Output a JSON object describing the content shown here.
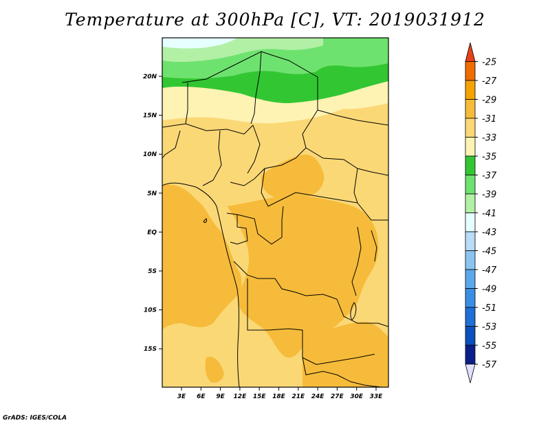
{
  "title": "Temperature at 300hPa [C], VT: 2019031912",
  "credit": "GrADS: IGES/COLA",
  "map": {
    "latitude_labels": [
      "20N",
      "15N",
      "10N",
      "5N",
      "EQ",
      "5S",
      "10S",
      "15S"
    ],
    "longitude_labels": [
      "3E",
      "6E",
      "9E",
      "12E",
      "15E",
      "18E",
      "21E",
      "24E",
      "27E",
      "30E",
      "33E"
    ]
  },
  "colorbar": {
    "labels": [
      "-25",
      "-27",
      "-29",
      "-31",
      "-33",
      "-35",
      "-37",
      "-39",
      "-41",
      "-43",
      "-45",
      "-47",
      "-49",
      "-51",
      "-53",
      "-55",
      "-57"
    ],
    "colors": [
      "#e8411a",
      "#f06c00",
      "#f5a300",
      "#f6bb3a",
      "#fbd876",
      "#fef3b3",
      "#33c633",
      "#6ee26e",
      "#b2f0a6",
      "#e6ffff",
      "#b9dcf7",
      "#8cc4f1",
      "#5aa8eb",
      "#3a8ee3",
      "#1f6fd6",
      "#0c50bd",
      "#0a1f8a",
      "#e0e0ff"
    ]
  }
}
